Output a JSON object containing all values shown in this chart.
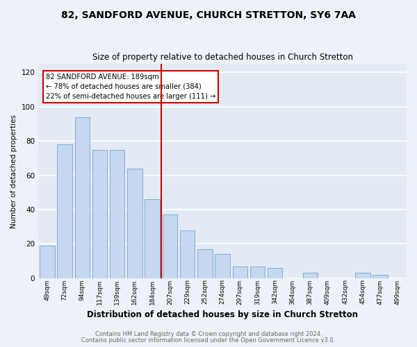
{
  "title": "82, SANDFORD AVENUE, CHURCH STRETTON, SY6 7AA",
  "subtitle": "Size of property relative to detached houses in Church Stretton",
  "xlabel": "Distribution of detached houses by size in Church Stretton",
  "ylabel": "Number of detached properties",
  "bar_labels": [
    "49sqm",
    "72sqm",
    "94sqm",
    "117sqm",
    "139sqm",
    "162sqm",
    "184sqm",
    "207sqm",
    "229sqm",
    "252sqm",
    "274sqm",
    "297sqm",
    "319sqm",
    "342sqm",
    "364sqm",
    "387sqm",
    "409sqm",
    "432sqm",
    "454sqm",
    "477sqm",
    "499sqm"
  ],
  "bar_values": [
    19,
    78,
    94,
    75,
    75,
    64,
    46,
    37,
    28,
    17,
    14,
    7,
    7,
    6,
    0,
    3,
    0,
    0,
    3,
    2,
    0
  ],
  "bar_color": "#c5d8f0",
  "bar_edge_color": "#7aadd4",
  "marker_index": 6,
  "marker_color": "#cc0000",
  "annotation_lines": [
    "82 SANDFORD AVENUE: 189sqm",
    "← 78% of detached houses are smaller (384)",
    "22% of semi-detached houses are larger (111) →"
  ],
  "annotation_box_color": "#ffffff",
  "annotation_box_edge": "#cc0000",
  "ylim": [
    0,
    125
  ],
  "yticks": [
    0,
    20,
    40,
    60,
    80,
    100,
    120
  ],
  "footer1": "Contains HM Land Registry data © Crown copyright and database right 2024.",
  "footer2": "Contains public sector information licensed under the Open Government Licence v3.0.",
  "bg_color": "#eef2f8",
  "plot_bg_color": "#e4eaf4"
}
